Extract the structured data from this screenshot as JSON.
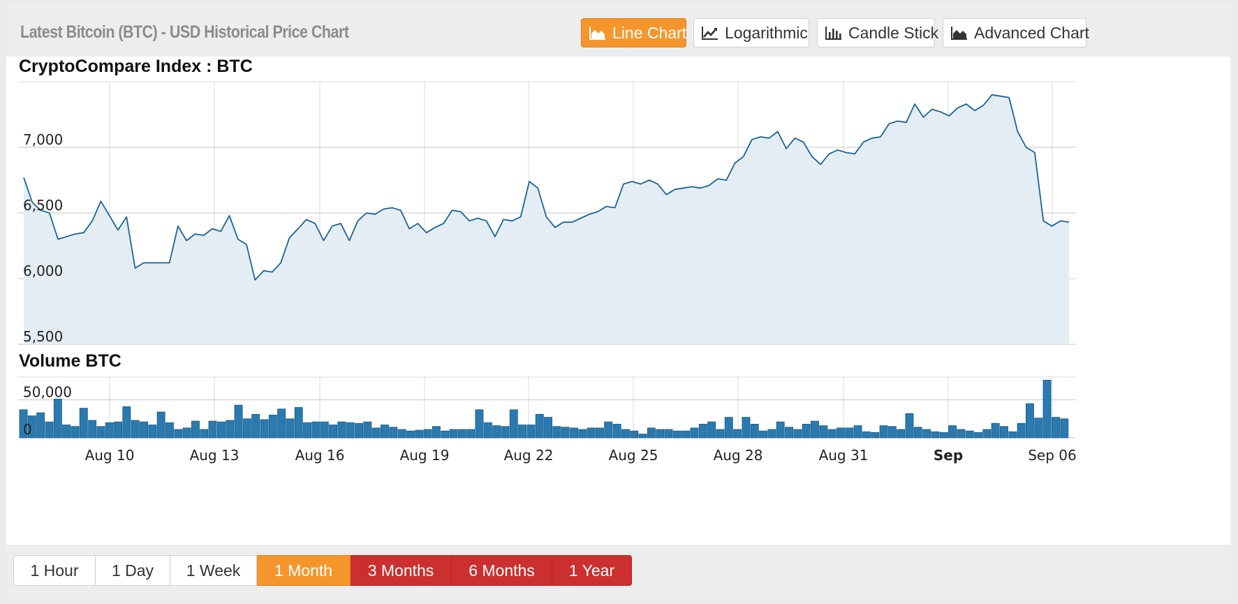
{
  "header": {
    "title": "Latest Bitcoin (BTC) - USD Historical Price Chart",
    "chart_types": [
      {
        "label": "Line Chart",
        "icon": "area-chart-icon",
        "active": true
      },
      {
        "label": "Logarithmic",
        "icon": "trend-line-icon",
        "active": false
      },
      {
        "label": "Candle Stick",
        "icon": "bar-chart-icon",
        "active": false
      },
      {
        "label": "Advanced Chart",
        "icon": "area-chart-icon",
        "active": false
      }
    ]
  },
  "range": {
    "buttons": [
      {
        "label": "1 Hour",
        "state": "default"
      },
      {
        "label": "1 Day",
        "state": "default"
      },
      {
        "label": "1 Week",
        "state": "default"
      },
      {
        "label": "1 Month",
        "state": "selected"
      },
      {
        "label": "3 Months",
        "state": "premium"
      },
      {
        "label": "6 Months",
        "state": "premium"
      },
      {
        "label": "1 Year",
        "state": "premium"
      }
    ]
  },
  "colors": {
    "accent": "#f5962d",
    "premium": "#cc2f2f",
    "line": "#1a6496",
    "area": "#e4edf3",
    "volume": "#2a7ab0",
    "grid": "#d8d8d8"
  },
  "chart_data": [
    {
      "type": "area",
      "title": "CryptoCompare Index : BTC",
      "x_ticks": [
        "Aug 10",
        "Aug 13",
        "Aug 16",
        "Aug 19",
        "Aug 22",
        "Aug 25",
        "Aug 28",
        "Aug 31",
        "Sep",
        "Sep 06"
      ],
      "y_ticks": [
        "5,500",
        "6,000",
        "6,500",
        "7,000"
      ],
      "ylim": [
        5500,
        7500
      ],
      "grid": true,
      "series": [
        {
          "values": [
            6770,
            6580,
            6520,
            6500,
            6300,
            6320,
            6340,
            6350,
            6440,
            6590,
            6480,
            6370,
            6470,
            6080,
            6120,
            6120,
            6120,
            6120,
            6400,
            6290,
            6340,
            6330,
            6380,
            6360,
            6480,
            6300,
            6260,
            5990,
            6060,
            6050,
            6120,
            6310,
            6380,
            6450,
            6420,
            6290,
            6400,
            6420,
            6290,
            6440,
            6500,
            6490,
            6530,
            6540,
            6520,
            6380,
            6420,
            6350,
            6390,
            6420,
            6520,
            6510,
            6440,
            6460,
            6440,
            6320,
            6450,
            6440,
            6470,
            6740,
            6690,
            6470,
            6390,
            6430,
            6430,
            6460,
            6490,
            6510,
            6550,
            6540,
            6720,
            6740,
            6720,
            6750,
            6720,
            6640,
            6680,
            6690,
            6700,
            6690,
            6710,
            6760,
            6750,
            6880,
            6930,
            7060,
            7080,
            7070,
            7120,
            6990,
            7070,
            7040,
            6930,
            6870,
            6950,
            6980,
            6960,
            6950,
            7040,
            7070,
            7080,
            7180,
            7200,
            7190,
            7330,
            7230,
            7290,
            7270,
            7240,
            7300,
            7330,
            7280,
            7320,
            7400,
            7390,
            7380,
            7120,
            7000,
            6960,
            6440,
            6400,
            6440,
            6430
          ]
        }
      ]
    },
    {
      "type": "bar",
      "title": "Volume BTC",
      "y_ticks": [
        "0",
        "50,000"
      ],
      "ylim": [
        0,
        80000
      ],
      "series": [
        {
          "values": [
            37000,
            29000,
            33000,
            21000,
            51000,
            17000,
            15000,
            39000,
            23000,
            15000,
            20000,
            21000,
            41000,
            23000,
            21000,
            17000,
            34000,
            20000,
            11000,
            13000,
            22000,
            11000,
            22000,
            21000,
            23000,
            43000,
            25000,
            31000,
            24000,
            30000,
            38000,
            25000,
            40000,
            20000,
            21000,
            21000,
            17000,
            21000,
            20000,
            19000,
            21000,
            13000,
            17000,
            14000,
            11000,
            9000,
            10000,
            11000,
            15000,
            9000,
            11000,
            11000,
            11000,
            37000,
            20000,
            16000,
            15000,
            37000,
            17000,
            17000,
            31000,
            27000,
            15000,
            14000,
            13000,
            11000,
            13000,
            13000,
            21000,
            18000,
            11000,
            9000,
            5000,
            13000,
            11000,
            11000,
            9000,
            9000,
            13000,
            18000,
            21000,
            11000,
            27000,
            11000,
            27000,
            18000,
            9000,
            11000,
            21000,
            14000,
            11000,
            18000,
            22000,
            16000,
            11000,
            13000,
            13000,
            16000,
            8000,
            7000,
            16000,
            15000,
            11000,
            32000,
            14000,
            11000,
            8000,
            7000,
            16000,
            11000,
            9000,
            7000,
            11000,
            19000,
            15000,
            8000,
            19000,
            45000,
            26000,
            76000,
            27000,
            25000
          ]
        }
      ]
    }
  ]
}
